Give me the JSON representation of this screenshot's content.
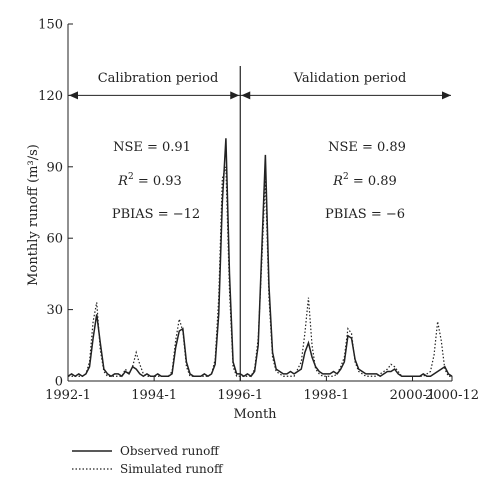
{
  "chart_data": {
    "type": "line",
    "xlabel": "Month",
    "ylabel": "Monthly runoff (m³/s)",
    "ylim": [
      0,
      150
    ],
    "yticks": [
      0,
      30,
      60,
      90,
      120,
      150
    ],
    "xticks": [
      "1992-1",
      "1994-1",
      "1996-1",
      "1998-1",
      "2000-1",
      "2000-12"
    ],
    "x_range": [
      "1992-01",
      "2000-12"
    ],
    "split_month": "1996-01",
    "periods": {
      "calibration": "Calibration period",
      "validation": "Validation period"
    },
    "stats": {
      "calibration": {
        "nse": "NSE = 0.91",
        "r2_symbol": "R",
        "r2_value": " = 0.93",
        "pbias": "PBIAS = −12"
      },
      "validation": {
        "nse": "NSE = 0.89",
        "r2_symbol": "R",
        "r2_value": " = 0.89",
        "pbias": "PBIAS = −6"
      }
    },
    "series": [
      {
        "name": "Observed runoff",
        "style": "solid",
        "color": "#222222",
        "values": [
          2,
          3,
          2,
          3,
          2,
          3,
          6,
          18,
          28,
          16,
          5,
          3,
          2,
          3,
          3,
          2,
          4,
          3,
          6,
          5,
          3,
          2,
          3,
          2,
          2,
          3,
          2,
          2,
          2,
          3,
          14,
          21,
          22,
          8,
          3,
          2,
          2,
          2,
          3,
          2,
          3,
          7,
          28,
          75,
          102,
          45,
          8,
          3,
          3,
          2,
          3,
          2,
          4,
          15,
          55,
          95,
          40,
          12,
          5,
          4,
          3,
          3,
          4,
          3,
          4,
          5,
          12,
          16,
          10,
          6,
          4,
          3,
          3,
          3,
          4,
          3,
          5,
          8,
          19,
          18,
          9,
          5,
          4,
          3,
          3,
          3,
          3,
          2,
          3,
          4,
          4,
          5,
          3,
          2,
          2,
          2,
          2,
          2,
          2,
          3,
          2,
          2,
          3,
          4,
          5,
          6,
          3,
          2
        ]
      },
      {
        "name": "Simulated runoff",
        "style": "dotted",
        "color": "#222222",
        "values": [
          2,
          2,
          2,
          2,
          2,
          3,
          8,
          25,
          33,
          13,
          4,
          2,
          2,
          2,
          2,
          2,
          5,
          3,
          6,
          12,
          7,
          3,
          2,
          2,
          2,
          2,
          2,
          2,
          2,
          4,
          17,
          26,
          21,
          6,
          2,
          2,
          2,
          2,
          2,
          2,
          3,
          9,
          35,
          85,
          90,
          38,
          6,
          2,
          2,
          2,
          2,
          2,
          5,
          18,
          50,
          85,
          35,
          10,
          4,
          3,
          2,
          2,
          2,
          2,
          5,
          8,
          20,
          35,
          15,
          5,
          3,
          2,
          2,
          2,
          2,
          3,
          6,
          10,
          22,
          20,
          8,
          4,
          3,
          2,
          2,
          2,
          2,
          3,
          4,
          5,
          7,
          6,
          4,
          2,
          2,
          2,
          2,
          2,
          2,
          2,
          3,
          4,
          11,
          25,
          17,
          5,
          2,
          2
        ]
      }
    ]
  }
}
